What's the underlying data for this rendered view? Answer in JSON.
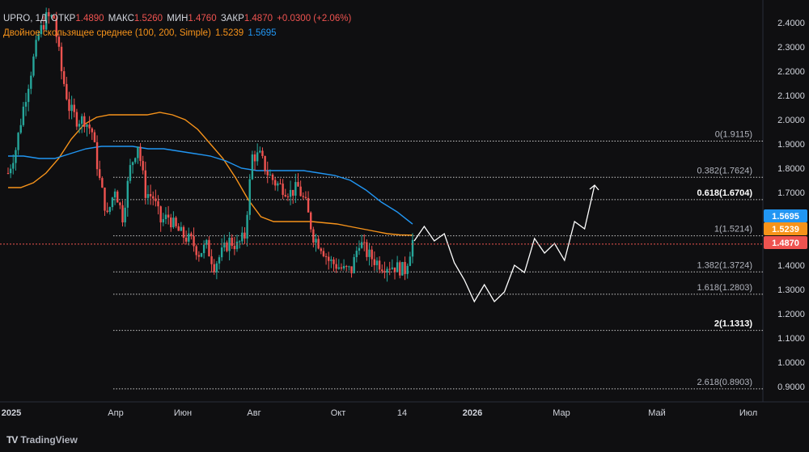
{
  "header": {
    "ticker": "UPRO, 1Д",
    "open_label": "ОТКР",
    "open": "1.4890",
    "high_label": "МАКС",
    "high": "1.5260",
    "low_label": "МИН",
    "low": "1.4760",
    "close_label": "ЗАКР",
    "close": "1.4870",
    "change": "+0.0300 (+2.06%)",
    "indicator": "Двойное скользящее среднее (100, 200, Simple)",
    "ma_fast": "1.5239",
    "ma_slow": "1.5695"
  },
  "branding": {
    "logo_text": "TV",
    "name": "TradingView"
  },
  "colors": {
    "background": "#0f0f11",
    "up": "#26a69a",
    "down": "#ef5350",
    "ma_fast": "#f7931a",
    "ma_slow": "#2196f3",
    "text": "#d1d4dc",
    "projection": "#ffffff"
  },
  "chart_data": {
    "type": "candlestick",
    "y_axis_ticks": [
      "2.4000",
      "2.3000",
      "2.2000",
      "2.1000",
      "2.0000",
      "1.9000",
      "1.8000",
      "1.7000",
      "1.6000",
      "1.5000",
      "1.4000",
      "1.3000",
      "1.2000",
      "1.1000",
      "1.0000",
      "0.9000"
    ],
    "ylim": [
      0.86,
      2.44
    ],
    "x_axis_labels": [
      "2025",
      "Апр",
      "Июн",
      "Авг",
      "Окт",
      "14",
      "2026",
      "Мар",
      "Май",
      "Июл"
    ],
    "fib_levels": [
      {
        "label": "0(1.9115)",
        "value": 1.9115,
        "bold": false
      },
      {
        "label": "0.382(1.7624)",
        "value": 1.7624,
        "bold": false
      },
      {
        "label": "0.618(1.6704)",
        "value": 1.6704,
        "bold": true
      },
      {
        "label": "1(1.5214)",
        "value": 1.5214,
        "bold": false
      },
      {
        "label": "1.382(1.3724)",
        "value": 1.3724,
        "bold": false
      },
      {
        "label": "1.618(1.2803)",
        "value": 1.2803,
        "bold": false
      },
      {
        "label": "2(1.1313)",
        "value": 1.1313,
        "bold": true
      },
      {
        "label": "2.618(0.8903)",
        "value": 0.8903,
        "bold": false
      }
    ],
    "price_badges": [
      {
        "label": "1.5695",
        "value": 1.5695,
        "color": "#2196f3"
      },
      {
        "label": "1.5239",
        "value": 1.5239,
        "color": "#f7931a"
      },
      {
        "label": "1.4870",
        "value": 1.487,
        "color": "#ef5350"
      }
    ],
    "price_path": [
      1.78,
      1.88,
      2.05,
      2.2,
      2.35,
      2.42,
      2.42,
      2.2,
      2.05,
      2.0,
      2.0,
      1.95,
      1.75,
      1.6,
      1.72,
      1.6,
      1.8,
      1.9,
      1.7,
      1.68,
      1.58,
      1.6,
      1.55,
      1.52,
      1.5,
      1.45,
      1.48,
      1.4,
      1.45,
      1.5,
      1.48,
      1.52,
      1.85,
      1.85,
      1.78,
      1.74,
      1.72,
      1.7,
      1.72,
      1.65,
      1.52,
      1.48,
      1.42,
      1.4,
      1.38,
      1.38,
      1.5,
      1.45,
      1.42,
      1.4,
      1.4,
      1.39,
      1.38,
      1.5
    ],
    "ma_fast_path": [
      1.72,
      1.72,
      1.74,
      1.78,
      1.84,
      1.92,
      1.98,
      2.01,
      2.02,
      2.02,
      2.02,
      2.02,
      2.03,
      2.02,
      2.0,
      1.96,
      1.9,
      1.84,
      1.76,
      1.67,
      1.6,
      1.58,
      1.58,
      1.58,
      1.58,
      1.575,
      1.57,
      1.56,
      1.55,
      1.54,
      1.53,
      1.525,
      1.5239
    ],
    "ma_slow_path": [
      1.85,
      1.85,
      1.84,
      1.84,
      1.86,
      1.88,
      1.89,
      1.89,
      1.89,
      1.88,
      1.88,
      1.87,
      1.86,
      1.85,
      1.83,
      1.8,
      1.79,
      1.79,
      1.79,
      1.79,
      1.78,
      1.77,
      1.75,
      1.71,
      1.66,
      1.62,
      1.5695
    ],
    "projection_path": [
      1.5,
      1.56,
      1.5,
      1.53,
      1.41,
      1.34,
      1.25,
      1.32,
      1.25,
      1.29,
      1.4,
      1.37,
      1.51,
      1.45,
      1.49,
      1.42,
      1.58,
      1.55,
      1.73
    ]
  }
}
